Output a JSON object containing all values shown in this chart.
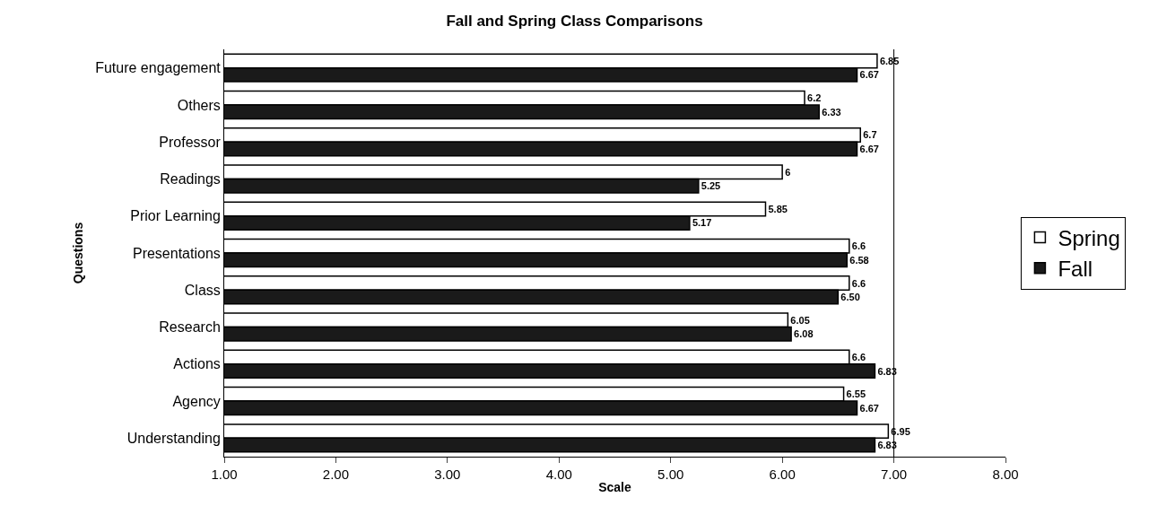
{
  "chart_data": {
    "type": "bar",
    "orientation": "horizontal",
    "title": "Fall and Spring Class Comparisons",
    "xlabel": "Scale",
    "ylabel": "Questions",
    "categories": [
      "Future engagement",
      "Others",
      "Professor",
      "Readings",
      "Prior Learning",
      "Presentations",
      "Class",
      "Research",
      "Actions",
      "Agency",
      "Understanding"
    ],
    "series": [
      {
        "name": "Spring",
        "color": "#ffffff",
        "values": [
          6.85,
          6.2,
          6.7,
          6,
          5.85,
          6.6,
          6.6,
          6.05,
          6.6,
          6.55,
          6.95
        ],
        "value_labels": [
          "6.85",
          "6.2",
          "6.7",
          "6",
          "5.85",
          "6.6",
          "6.6",
          "6.05",
          "6.6",
          "6.55",
          "6.95"
        ]
      },
      {
        "name": "Fall",
        "color": "#1a1a1a",
        "values": [
          6.67,
          6.33,
          6.67,
          5.25,
          5.17,
          6.58,
          6.5,
          6.08,
          6.83,
          6.67,
          6.83
        ],
        "value_labels": [
          "6.67",
          "6.33",
          "6.67",
          "5.25",
          "5.17",
          "6.58",
          "6.50",
          "6.08",
          "6.83",
          "6.67",
          "6.83"
        ]
      }
    ],
    "xlim": [
      1,
      8
    ],
    "xticks": [
      {
        "value": 1,
        "label": "1.00"
      },
      {
        "value": 2,
        "label": "2.00"
      },
      {
        "value": 3,
        "label": "3.00"
      },
      {
        "value": 4,
        "label": "4.00"
      },
      {
        "value": 5,
        "label": "5.00"
      },
      {
        "value": 6,
        "label": "6.00"
      },
      {
        "value": 7,
        "label": "7.00"
      },
      {
        "value": 8,
        "label": "8.00"
      }
    ],
    "ref_lines": [
      {
        "axis": "x",
        "value": 7,
        "color": "#000000",
        "line_style": "solid"
      }
    ],
    "grid": false,
    "legend": "right"
  }
}
